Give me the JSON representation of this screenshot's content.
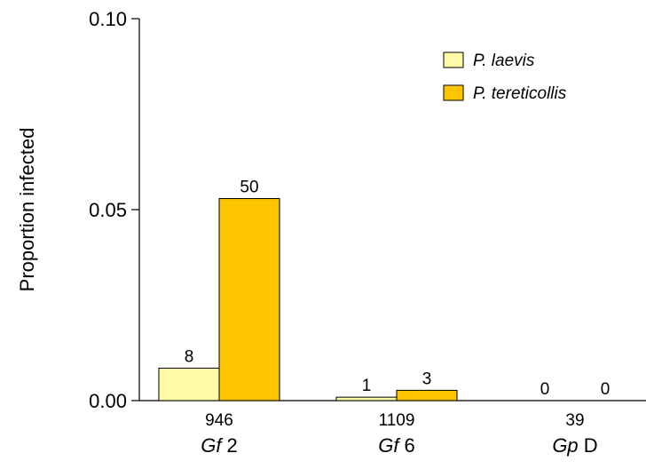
{
  "chart_data": {
    "type": "bar",
    "ylabel": "Proportion infected",
    "ylim": [
      0,
      0.1
    ],
    "yticks": [
      "0.00",
      "0.05",
      "0.10"
    ],
    "ytick_values": [
      0,
      0.05,
      0.1
    ],
    "categories": [
      {
        "sample_size": "946",
        "italic": "Gf",
        "suffix": "2"
      },
      {
        "sample_size": "1109",
        "italic": "Gf",
        "suffix": "6"
      },
      {
        "sample_size": "39",
        "italic": "Gp",
        "suffix": "D"
      }
    ],
    "series": [
      {
        "name": "P. laevis",
        "color": "#fefaa8",
        "values": [
          0.0085,
          0.0009,
          0
        ],
        "labels": [
          "8",
          "1",
          "0"
        ]
      },
      {
        "name": "P. tereticollis",
        "color": "#fcc500",
        "values": [
          0.0529,
          0.0027,
          0
        ],
        "labels": [
          "50",
          "3",
          "0"
        ]
      }
    ],
    "legend_position": "top-right",
    "grid": false
  }
}
